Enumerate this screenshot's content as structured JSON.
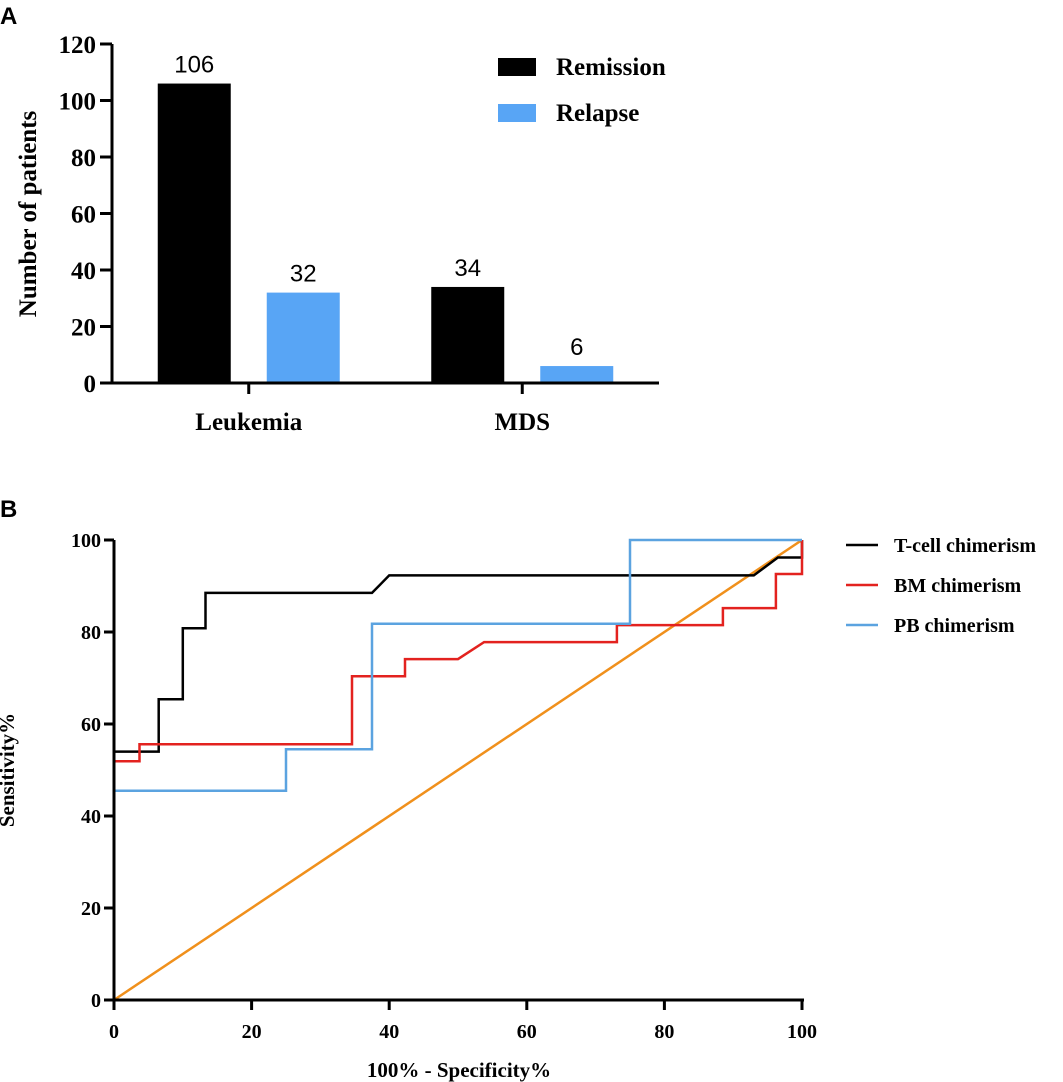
{
  "panel_a_label": "A",
  "panel_b_label": "B",
  "chart_data": [
    {
      "type": "bar",
      "title": "",
      "xlabel": "",
      "ylabel": "Number of patients",
      "ylim": [
        0,
        120
      ],
      "yticks": [
        "0",
        "20",
        "40",
        "60",
        "80",
        "100",
        "120"
      ],
      "categories": [
        "Leukemia",
        "MDS"
      ],
      "series": [
        {
          "name": "Remission",
          "values": [
            106,
            34
          ],
          "color": "#000000"
        },
        {
          "name": "Relapse",
          "values": [
            32,
            6
          ],
          "color": "#58a5f5"
        }
      ],
      "data_labels": [
        "106",
        "34",
        "32",
        "6"
      ],
      "legend": "top-right"
    },
    {
      "type": "line",
      "title": "",
      "xlabel": "100% - Specificity%",
      "ylabel": "Sensitivity%",
      "xlim": [
        0,
        100
      ],
      "ylim": [
        0,
        100
      ],
      "xticks": [
        "0",
        "20",
        "40",
        "60",
        "80",
        "100"
      ],
      "yticks": [
        "0",
        "20",
        "40",
        "60",
        "80",
        "100"
      ],
      "legend": "right",
      "series": [
        {
          "name": "T-cell chimerism",
          "color": "#000000",
          "points": [
            [
              0,
              0
            ],
            [
              0,
              54
            ],
            [
              6.5,
              54
            ],
            [
              6.5,
              61.5
            ],
            [
              6.5,
              61.5
            ],
            [
              6.5,
              65.4
            ],
            [
              10,
              65.4
            ],
            [
              10,
              80.8
            ],
            [
              13.3,
              80.8
            ],
            [
              13.3,
              88.5
            ],
            [
              37.5,
              88.5
            ],
            [
              40,
              92.3
            ],
            [
              93,
              92.3
            ],
            [
              96.5,
              96.2
            ],
            [
              100,
              96.2
            ],
            [
              100,
              100
            ]
          ]
        },
        {
          "name": "BM chimerism",
          "color": "#e3221f",
          "points": [
            [
              0,
              0
            ],
            [
              0,
              51.9
            ],
            [
              3.7,
              51.9
            ],
            [
              3.7,
              55.6
            ],
            [
              34.6,
              55.6
            ],
            [
              34.6,
              70.4
            ],
            [
              42.3,
              70.4
            ],
            [
              42.3,
              74.1
            ],
            [
              50,
              74.1
            ],
            [
              53.8,
              77.8
            ],
            [
              73.1,
              77.8
            ],
            [
              73.1,
              81.5
            ],
            [
              88.5,
              81.5
            ],
            [
              88.5,
              85.2
            ],
            [
              96.2,
              85.2
            ],
            [
              96.2,
              92.6
            ],
            [
              100,
              92.6
            ],
            [
              100,
              100
            ]
          ]
        },
        {
          "name": "PB chimerism",
          "color": "#5ba3e0",
          "points": [
            [
              0,
              0
            ],
            [
              0,
              45.5
            ],
            [
              25,
              45.5
            ],
            [
              25,
              54.5
            ],
            [
              37.5,
              54.5
            ],
            [
              37.5,
              81.8
            ],
            [
              75,
              81.8
            ],
            [
              75,
              100
            ],
            [
              100,
              100
            ]
          ]
        },
        {
          "name": "",
          "color": "#f0901c",
          "points": [
            [
              0,
              0
            ],
            [
              100,
              100
            ]
          ]
        }
      ]
    }
  ]
}
